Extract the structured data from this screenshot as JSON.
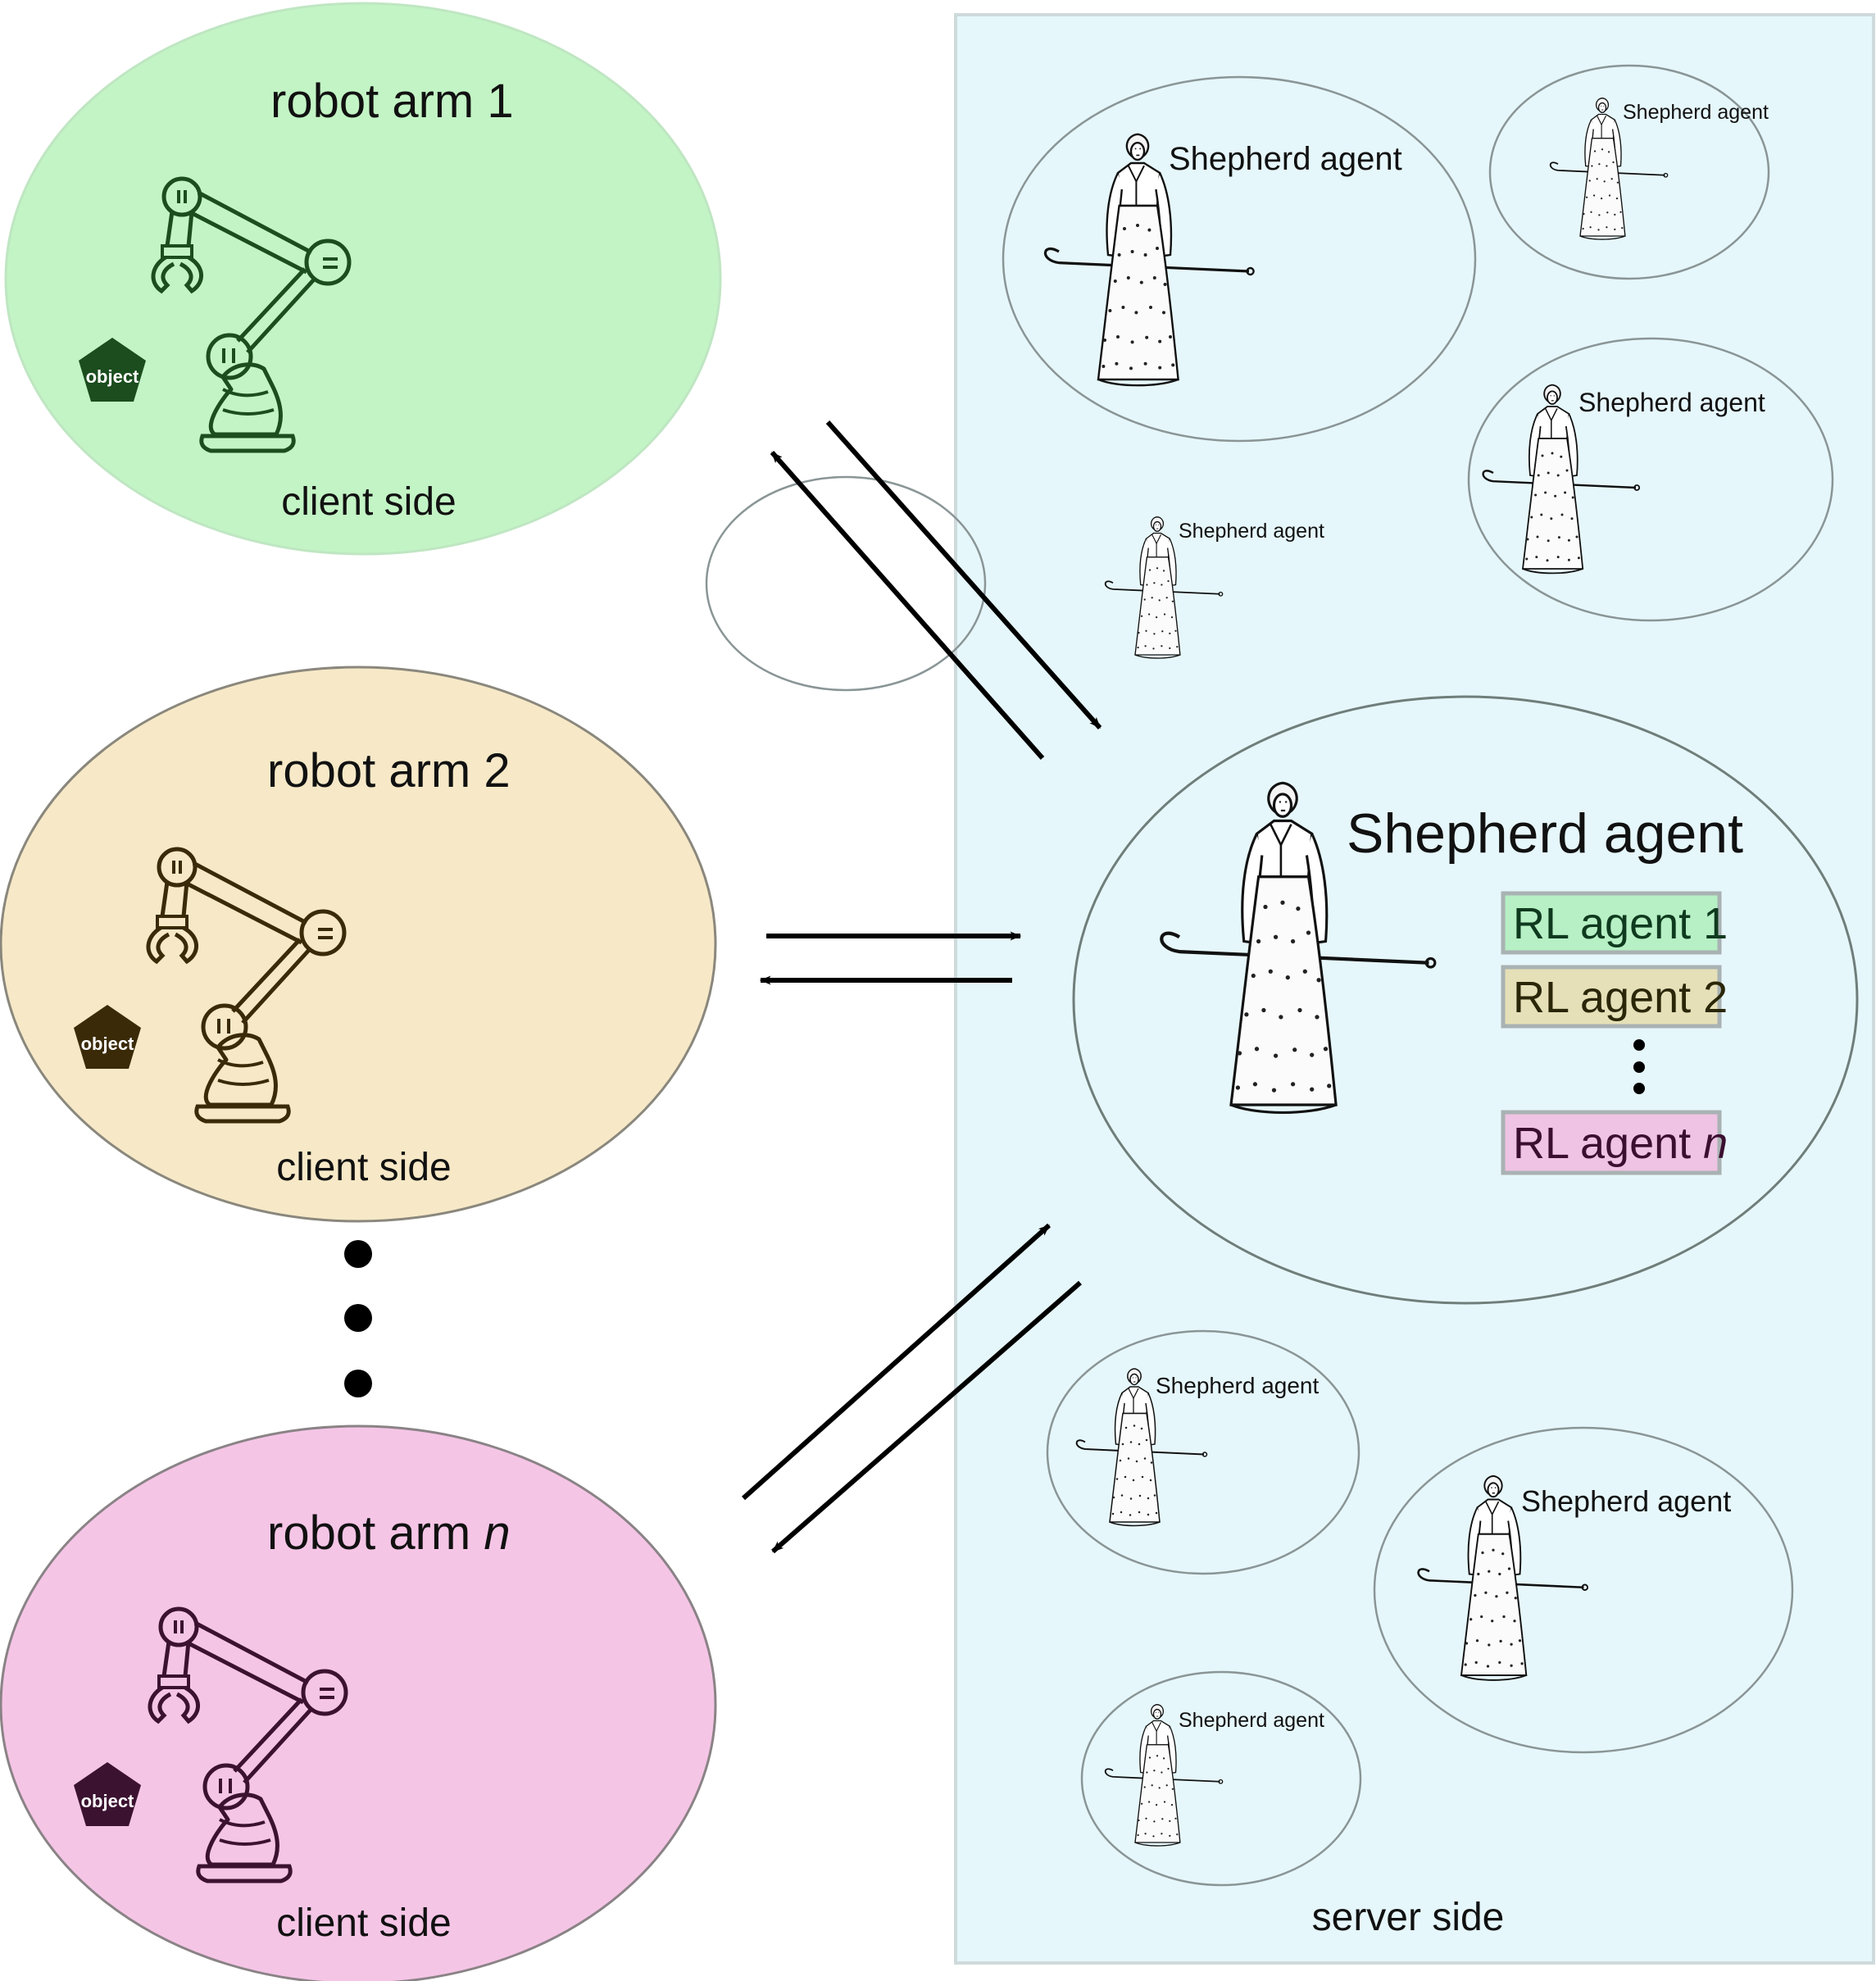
{
  "colors": {
    "client1_fill": "#c3f4c5",
    "client1_stroke": "#1b4d1e",
    "client2_fill": "#f7e9c7",
    "client2_stroke": "#3a2a08",
    "clientn_fill": "#f5c5e6",
    "clientn_stroke": "#3b1230",
    "server_fill": "#e6f7fb",
    "server_stroke": "#cfdadc",
    "rl1_fill": "#b6f0c4",
    "rl2_fill": "#e6e0b8",
    "rln_fill": "#efc3e3",
    "box_stroke": "#a9b2b3"
  },
  "clients": [
    {
      "title_prefix": "robot arm ",
      "title_num": "1",
      "side_label": "client side",
      "object_label": "object"
    },
    {
      "title_prefix": "robot arm ",
      "title_num": "2",
      "side_label": "client side",
      "object_label": "object"
    },
    {
      "title_prefix": "robot arm ",
      "title_num": "n",
      "side_label": "client side",
      "object_label": "object"
    }
  ],
  "server": {
    "side_label": "server side",
    "main_agent_label": "Shepherd agent",
    "rl_agents": [
      {
        "prefix": "RL agent ",
        "num": "1"
      },
      {
        "prefix": "RL agent ",
        "num": "2"
      },
      {
        "prefix": "RL agent ",
        "num": "n"
      }
    ],
    "small_agents": [
      "Shepherd agent",
      "Shepherd agent",
      "Shepherd agent",
      "Shepherd agent",
      "Shepherd agent",
      "Shepherd agent",
      "Shepherd agent"
    ]
  },
  "icons": {
    "robot_arm": "robot-arm-icon",
    "object": "pentagon-object-icon",
    "shepherd": "shepherdess-figure-icon",
    "ellipsis": "vertical-ellipsis-icon"
  }
}
